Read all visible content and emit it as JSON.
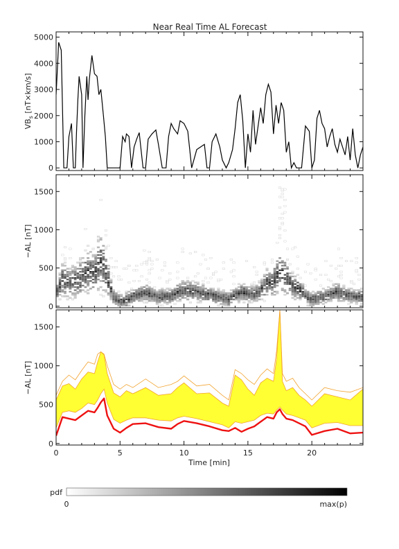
{
  "title": "Near Real Time AL Forecast",
  "x_axis": {
    "label": "Time [min]",
    "range": [
      0,
      24
    ],
    "ticks": [
      0,
      5,
      10,
      15,
      20
    ],
    "tick_labels": [
      "0",
      "5",
      "10",
      "15",
      "20"
    ]
  },
  "panels": [
    {
      "id": "vbs",
      "ylabel_main": "VB",
      "ylabel_sub": "s",
      "ylabel_tail": " [nT×km/s]",
      "range": [
        -100,
        5200
      ],
      "ticks": [
        0,
        1000,
        2000,
        3000,
        4000,
        5000
      ],
      "tick_labels": [
        "0",
        "1000",
        "2000",
        "3000",
        "4000",
        "5000"
      ]
    },
    {
      "id": "al-pdf",
      "ylabel": "−AL [nT]",
      "range": [
        -20,
        1720
      ],
      "ticks": [
        0,
        500,
        1000,
        1500
      ],
      "tick_labels": [
        "0",
        "500",
        "1000",
        "1500"
      ]
    },
    {
      "id": "al-forecast",
      "ylabel": "−AL [nT]",
      "range": [
        -20,
        1720
      ],
      "ticks": [
        0,
        500,
        1000,
        1500
      ],
      "tick_labels": [
        "0",
        "500",
        "1000",
        "1500"
      ]
    }
  ],
  "colorbar": {
    "label": "pdf",
    "min_label": "0",
    "max_label": "max(p)"
  },
  "colors": {
    "vbs_line": "#000000",
    "al_median": "#ee1111",
    "band_fill": "#ffff33",
    "band_edge": "#f2a22e",
    "axis": "#111111"
  },
  "chart_data": [
    {
      "type": "line",
      "title": "Near Real Time AL Forecast",
      "xlabel": "Time [min]",
      "ylabel": "VBs [nT×km/s]",
      "xlim": [
        0,
        24
      ],
      "ylim": [
        -100,
        5200
      ],
      "series": [
        {
          "x": [
            0,
            0.2,
            0.4,
            0.6,
            0.75,
            0.85,
            1.0,
            1.2,
            1.35,
            1.5,
            1.6,
            1.7,
            1.8,
            2.0,
            2.1,
            2.25,
            2.4,
            2.5,
            2.6,
            2.8,
            3.0,
            3.2,
            3.35,
            3.5,
            3.7,
            3.85,
            4.0,
            4.1,
            4.3,
            4.5,
            4.8,
            5.0,
            5.2,
            5.4,
            5.5,
            5.7,
            5.9,
            6.1,
            6.3,
            6.5,
            6.6,
            6.8,
            7.0,
            7.2,
            7.5,
            7.8,
            8.0,
            8.3,
            8.6,
            8.8,
            9.0,
            9.2,
            9.5,
            9.7,
            10.0,
            10.3,
            10.6,
            11.0,
            11.3,
            11.6,
            11.8,
            12.0,
            12.2,
            12.5,
            12.8,
            13.0,
            13.3,
            13.5,
            13.8,
            14.0,
            14.2,
            14.4,
            14.6,
            14.8,
            15.0,
            15.2,
            15.4,
            15.6,
            15.8,
            16.0,
            16.2,
            16.4,
            16.6,
            16.8,
            17.0,
            17.2,
            17.4,
            17.6,
            17.8,
            18.0,
            18.2,
            18.4,
            18.6,
            18.8,
            19.0,
            19.2,
            19.5,
            19.8,
            20.0,
            20.2,
            20.4,
            20.6,
            20.8,
            21.0,
            21.2,
            21.4,
            21.6,
            21.8,
            22.0,
            22.2,
            22.4,
            22.6,
            22.8,
            23.0,
            23.2,
            23.4,
            23.6,
            23.8,
            24.0
          ],
          "y": [
            2800,
            4800,
            4500,
            0,
            0,
            0,
            1200,
            1700,
            0,
            0,
            1400,
            2600,
            3500,
            2800,
            0,
            2000,
            3500,
            2600,
            3400,
            4300,
            3600,
            3500,
            2800,
            3000,
            2000,
            1200,
            0,
            0,
            0,
            0,
            0,
            0,
            1200,
            1000,
            1300,
            1200,
            0,
            800,
            1100,
            1350,
            900,
            0,
            0,
            1100,
            1300,
            1450,
            900,
            0,
            0,
            1200,
            1700,
            1500,
            1300,
            1800,
            1700,
            1400,
            0,
            700,
            800,
            900,
            0,
            0,
            1000,
            1300,
            800,
            300,
            0,
            200,
            700,
            1500,
            2500,
            2800,
            1800,
            0,
            1300,
            600,
            2200,
            900,
            1600,
            2300,
            1700,
            2800,
            3200,
            2900,
            1300,
            2400,
            1700,
            2500,
            2200,
            600,
            1000,
            0,
            200,
            0,
            0,
            0,
            1600,
            1400,
            0,
            300,
            1900,
            2200,
            1700,
            1500,
            800,
            1200,
            1500,
            900,
            600,
            1100,
            800,
            500,
            1200,
            300,
            1500,
            500,
            0,
            500,
            800
          ]
        }
      ]
    },
    {
      "type": "heatmap",
      "ylabel": "−AL [nT]",
      "xlim": [
        0,
        24
      ],
      "ylim": [
        -20,
        1720
      ],
      "bins": {
        "dt_min": 0.2,
        "dal_nt": 20
      },
      "center": {
        "x": [
          0,
          0.5,
          1,
          1.5,
          2,
          2.5,
          3,
          3.25,
          3.5,
          3.75,
          4,
          4.5,
          5,
          5.5,
          6,
          7,
          8,
          9,
          9.5,
          10,
          11,
          12,
          13,
          13.5,
          14,
          14.5,
          15,
          15.5,
          16,
          16.5,
          17,
          17.5,
          18,
          18.5,
          19,
          19.5,
          20,
          21,
          22,
          23,
          24
        ],
        "y": [
          150,
          350,
          300,
          330,
          380,
          450,
          420,
          520,
          600,
          500,
          380,
          120,
          60,
          80,
          130,
          180,
          120,
          130,
          180,
          210,
          190,
          150,
          110,
          90,
          150,
          180,
          170,
          160,
          200,
          300,
          320,
          470,
          380,
          260,
          230,
          140,
          90,
          130,
          190,
          130,
          120
        ]
      },
      "colorbar": {
        "label": "pdf",
        "range_labels": [
          "0",
          "max(p)"
        ]
      }
    },
    {
      "type": "area",
      "xlabel": "Time [min]",
      "ylabel": "−AL [nT]",
      "xlim": [
        0,
        24
      ],
      "ylim": [
        -20,
        1720
      ],
      "x": [
        0,
        0.5,
        1,
        1.5,
        2,
        2.5,
        3,
        3.25,
        3.5,
        3.75,
        4,
        4.5,
        5,
        5.5,
        6,
        7,
        8,
        9,
        9.5,
        10,
        11,
        12,
        13,
        13.5,
        14,
        14.5,
        15,
        15.5,
        16,
        16.5,
        17,
        17.25,
        17.5,
        17.7,
        18,
        18.5,
        19,
        19.5,
        20,
        21,
        22,
        23,
        24
      ],
      "series": [
        {
          "name": "median",
          "values": [
            100,
            340,
            320,
            300,
            360,
            420,
            400,
            460,
            530,
            580,
            360,
            190,
            140,
            200,
            250,
            260,
            210,
            190,
            250,
            290,
            260,
            220,
            170,
            160,
            200,
            150,
            190,
            220,
            280,
            340,
            320,
            400,
            440,
            380,
            320,
            300,
            260,
            220,
            110,
            160,
            190,
            130,
            140
          ]
        },
        {
          "name": "band_lower",
          "values": [
            200,
            400,
            420,
            400,
            450,
            520,
            500,
            560,
            640,
            700,
            520,
            310,
            260,
            300,
            330,
            330,
            300,
            290,
            330,
            350,
            320,
            280,
            240,
            200,
            280,
            260,
            280,
            300,
            360,
            390,
            380,
            430,
            470,
            430,
            380,
            360,
            330,
            300,
            200,
            260,
            270,
            230,
            230
          ]
        },
        {
          "name": "band_upper",
          "values": [
            560,
            740,
            770,
            700,
            830,
            920,
            900,
            1050,
            1180,
            1140,
            900,
            650,
            600,
            680,
            640,
            720,
            620,
            640,
            720,
            780,
            640,
            650,
            520,
            480,
            880,
            820,
            700,
            620,
            780,
            840,
            800,
            1100,
            1720,
            800,
            680,
            720,
            620,
            560,
            480,
            640,
            600,
            560,
            700
          ]
        },
        {
          "name": "outer_envelope",
          "values": [
            620,
            800,
            880,
            820,
            940,
            1050,
            1020,
            1150,
            1180,
            1150,
            1000,
            760,
            700,
            760,
            720,
            830,
            720,
            760,
            800,
            870,
            740,
            760,
            620,
            560,
            950,
            900,
            820,
            760,
            880,
            960,
            900,
            1200,
            1720,
            900,
            800,
            840,
            720,
            640,
            560,
            720,
            680,
            660,
            720
          ]
        }
      ]
    }
  ]
}
